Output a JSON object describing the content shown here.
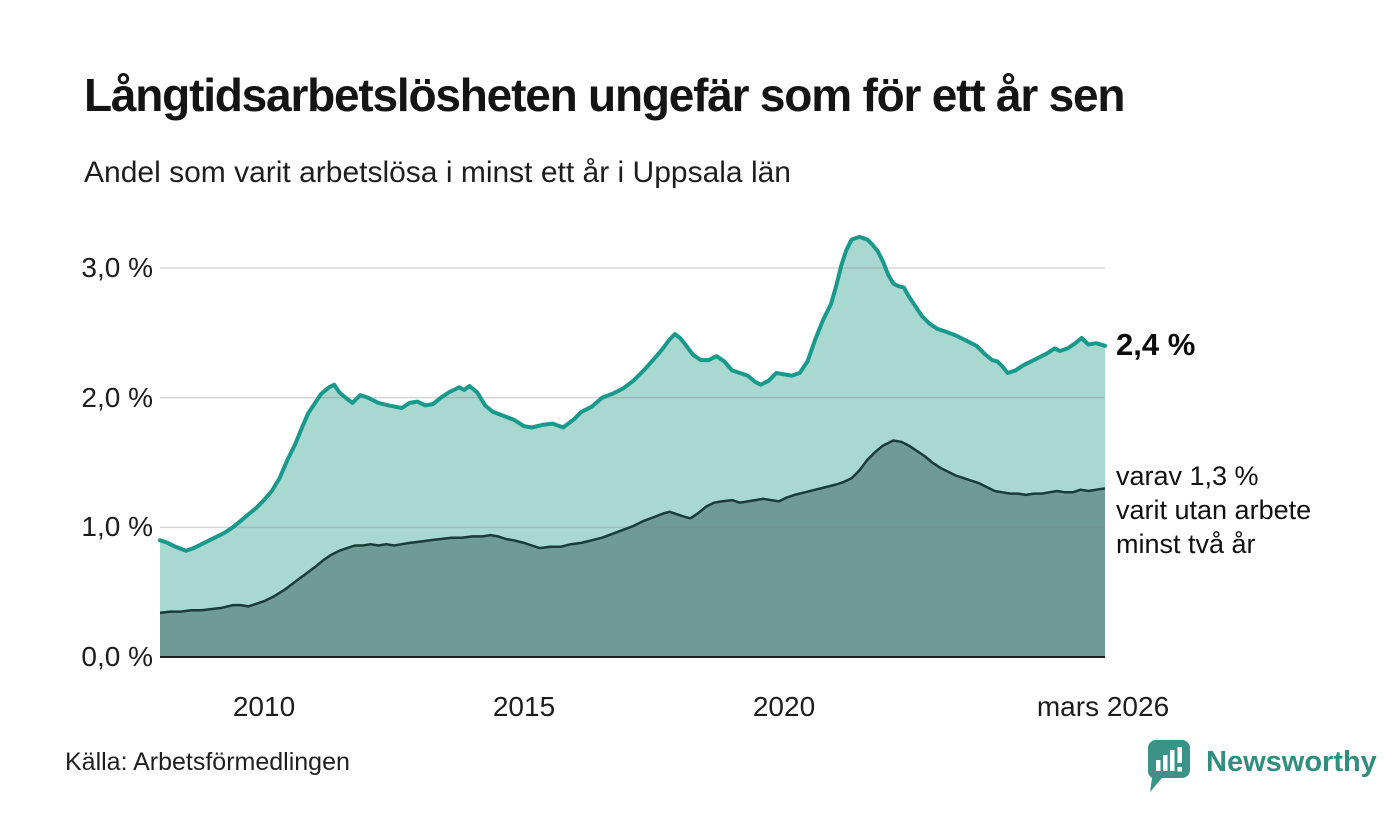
{
  "chart_data": {
    "type": "area",
    "title": "Långtidsarbetslösheten ungefär som för ett år sen",
    "subtitle": "Andel som varit arbetslösa i minst ett år i Uppsala län",
    "source": "Källa: Arbetsförmedlingen",
    "grid": true,
    "legend": "none",
    "x_range": [
      2008.0,
      2026.17
    ],
    "ylim": [
      0,
      3.25
    ],
    "x_ticks": [
      {
        "label": "2010",
        "year": 2010
      },
      {
        "label": "2015",
        "year": 2015
      },
      {
        "label": "2020",
        "year": 2020
      },
      {
        "label": "mars 2026",
        "year": 2026.17
      }
    ],
    "y_ticks": [
      {
        "label": "0,0 %",
        "value": 0
      },
      {
        "label": "1,0 %",
        "value": 1
      },
      {
        "label": "2,0 %",
        "value": 2
      },
      {
        "label": "3,0 %",
        "value": 3
      }
    ],
    "axis_color": "#1f1f1f",
    "gridline_color": "rgba(128,128,128,0.33)",
    "series": [
      {
        "name": "minst ett år",
        "line_color": "#18998b",
        "fill_color": "#a9d8d1",
        "line_width": 4,
        "end_value_label": "2,4 %",
        "points": [
          [
            2008.0,
            0.9
          ],
          [
            2008.15,
            0.88
          ],
          [
            2008.3,
            0.85
          ],
          [
            2008.5,
            0.82
          ],
          [
            2008.65,
            0.84
          ],
          [
            2008.8,
            0.87
          ],
          [
            2008.95,
            0.9
          ],
          [
            2009.1,
            0.93
          ],
          [
            2009.25,
            0.96
          ],
          [
            2009.4,
            1.0
          ],
          [
            2009.55,
            1.05
          ],
          [
            2009.7,
            1.1
          ],
          [
            2009.85,
            1.15
          ],
          [
            2010.0,
            1.21
          ],
          [
            2010.15,
            1.28
          ],
          [
            2010.3,
            1.38
          ],
          [
            2010.45,
            1.52
          ],
          [
            2010.6,
            1.64
          ],
          [
            2010.72,
            1.76
          ],
          [
            2010.85,
            1.88
          ],
          [
            2011.0,
            1.97
          ],
          [
            2011.1,
            2.03
          ],
          [
            2011.25,
            2.08
          ],
          [
            2011.35,
            2.1
          ],
          [
            2011.45,
            2.04
          ],
          [
            2011.6,
            1.99
          ],
          [
            2011.7,
            1.96
          ],
          [
            2011.85,
            2.02
          ],
          [
            2012.0,
            2.0
          ],
          [
            2012.2,
            1.96
          ],
          [
            2012.4,
            1.94
          ],
          [
            2012.65,
            1.92
          ],
          [
            2012.8,
            1.96
          ],
          [
            2012.95,
            1.97
          ],
          [
            2013.1,
            1.94
          ],
          [
            2013.25,
            1.95
          ],
          [
            2013.4,
            2.0
          ],
          [
            2013.55,
            2.04
          ],
          [
            2013.75,
            2.08
          ],
          [
            2013.85,
            2.06
          ],
          [
            2013.95,
            2.09
          ],
          [
            2014.1,
            2.04
          ],
          [
            2014.25,
            1.94
          ],
          [
            2014.4,
            1.89
          ],
          [
            2014.6,
            1.86
          ],
          [
            2014.8,
            1.83
          ],
          [
            2015.0,
            1.78
          ],
          [
            2015.15,
            1.77
          ],
          [
            2015.35,
            1.79
          ],
          [
            2015.55,
            1.8
          ],
          [
            2015.75,
            1.77
          ],
          [
            2015.95,
            1.83
          ],
          [
            2016.1,
            1.89
          ],
          [
            2016.3,
            1.93
          ],
          [
            2016.5,
            2.0
          ],
          [
            2016.7,
            2.03
          ],
          [
            2016.9,
            2.07
          ],
          [
            2017.1,
            2.13
          ],
          [
            2017.3,
            2.21
          ],
          [
            2017.5,
            2.3
          ],
          [
            2017.65,
            2.37
          ],
          [
            2017.8,
            2.45
          ],
          [
            2017.9,
            2.49
          ],
          [
            2018.0,
            2.46
          ],
          [
            2018.1,
            2.41
          ],
          [
            2018.25,
            2.33
          ],
          [
            2018.4,
            2.29
          ],
          [
            2018.55,
            2.29
          ],
          [
            2018.7,
            2.32
          ],
          [
            2018.85,
            2.28
          ],
          [
            2019.0,
            2.21
          ],
          [
            2019.15,
            2.19
          ],
          [
            2019.3,
            2.17
          ],
          [
            2019.45,
            2.12
          ],
          [
            2019.55,
            2.1
          ],
          [
            2019.7,
            2.13
          ],
          [
            2019.85,
            2.19
          ],
          [
            2020.0,
            2.18
          ],
          [
            2020.15,
            2.17
          ],
          [
            2020.3,
            2.19
          ],
          [
            2020.45,
            2.28
          ],
          [
            2020.6,
            2.45
          ],
          [
            2020.75,
            2.6
          ],
          [
            2020.9,
            2.72
          ],
          [
            2021.0,
            2.86
          ],
          [
            2021.1,
            3.02
          ],
          [
            2021.2,
            3.14
          ],
          [
            2021.3,
            3.22
          ],
          [
            2021.45,
            3.24
          ],
          [
            2021.6,
            3.22
          ],
          [
            2021.7,
            3.18
          ],
          [
            2021.8,
            3.13
          ],
          [
            2021.9,
            3.05
          ],
          [
            2022.0,
            2.95
          ],
          [
            2022.1,
            2.88
          ],
          [
            2022.2,
            2.86
          ],
          [
            2022.3,
            2.85
          ],
          [
            2022.4,
            2.78
          ],
          [
            2022.5,
            2.72
          ],
          [
            2022.65,
            2.63
          ],
          [
            2022.8,
            2.57
          ],
          [
            2022.95,
            2.53
          ],
          [
            2023.1,
            2.51
          ],
          [
            2023.3,
            2.48
          ],
          [
            2023.5,
            2.44
          ],
          [
            2023.7,
            2.4
          ],
          [
            2023.85,
            2.34
          ],
          [
            2024.0,
            2.29
          ],
          [
            2024.1,
            2.28
          ],
          [
            2024.2,
            2.24
          ],
          [
            2024.3,
            2.19
          ],
          [
            2024.45,
            2.21
          ],
          [
            2024.6,
            2.25
          ],
          [
            2024.75,
            2.28
          ],
          [
            2024.9,
            2.31
          ],
          [
            2025.05,
            2.34
          ],
          [
            2025.2,
            2.38
          ],
          [
            2025.3,
            2.36
          ],
          [
            2025.45,
            2.38
          ],
          [
            2025.6,
            2.42
          ],
          [
            2025.72,
            2.46
          ],
          [
            2025.85,
            2.41
          ],
          [
            2026.0,
            2.42
          ],
          [
            2026.17,
            2.4
          ]
        ]
      },
      {
        "name": "minst två år",
        "line_color": "#1a3c37",
        "fill_color": "#6f9b94",
        "line_width": 2.5,
        "end_note_lines": [
          "varav 1,3 %",
          "varit utan arbete",
          "minst två år"
        ],
        "points": [
          [
            2008.0,
            0.34
          ],
          [
            2008.2,
            0.35
          ],
          [
            2008.4,
            0.35
          ],
          [
            2008.6,
            0.36
          ],
          [
            2008.8,
            0.36
          ],
          [
            2009.0,
            0.37
          ],
          [
            2009.2,
            0.38
          ],
          [
            2009.4,
            0.4
          ],
          [
            2009.55,
            0.4
          ],
          [
            2009.7,
            0.39
          ],
          [
            2009.85,
            0.41
          ],
          [
            2010.0,
            0.43
          ],
          [
            2010.2,
            0.47
          ],
          [
            2010.4,
            0.52
          ],
          [
            2010.6,
            0.58
          ],
          [
            2010.8,
            0.64
          ],
          [
            2011.0,
            0.7
          ],
          [
            2011.15,
            0.75
          ],
          [
            2011.3,
            0.79
          ],
          [
            2011.45,
            0.82
          ],
          [
            2011.6,
            0.84
          ],
          [
            2011.75,
            0.86
          ],
          [
            2011.9,
            0.86
          ],
          [
            2012.05,
            0.87
          ],
          [
            2012.2,
            0.86
          ],
          [
            2012.35,
            0.87
          ],
          [
            2012.5,
            0.86
          ],
          [
            2012.65,
            0.87
          ],
          [
            2012.8,
            0.88
          ],
          [
            2013.0,
            0.89
          ],
          [
            2013.2,
            0.9
          ],
          [
            2013.4,
            0.91
          ],
          [
            2013.6,
            0.92
          ],
          [
            2013.8,
            0.92
          ],
          [
            2014.0,
            0.93
          ],
          [
            2014.2,
            0.93
          ],
          [
            2014.35,
            0.94
          ],
          [
            2014.5,
            0.93
          ],
          [
            2014.65,
            0.91
          ],
          [
            2014.8,
            0.9
          ],
          [
            2015.0,
            0.88
          ],
          [
            2015.15,
            0.86
          ],
          [
            2015.3,
            0.84
          ],
          [
            2015.5,
            0.85
          ],
          [
            2015.7,
            0.85
          ],
          [
            2015.9,
            0.87
          ],
          [
            2016.1,
            0.88
          ],
          [
            2016.3,
            0.9
          ],
          [
            2016.5,
            0.92
          ],
          [
            2016.7,
            0.95
          ],
          [
            2016.9,
            0.98
          ],
          [
            2017.1,
            1.01
          ],
          [
            2017.3,
            1.05
          ],
          [
            2017.5,
            1.08
          ],
          [
            2017.7,
            1.11
          ],
          [
            2017.8,
            1.12
          ],
          [
            2017.95,
            1.1
          ],
          [
            2018.1,
            1.08
          ],
          [
            2018.2,
            1.07
          ],
          [
            2018.35,
            1.11
          ],
          [
            2018.5,
            1.16
          ],
          [
            2018.65,
            1.19
          ],
          [
            2018.8,
            1.2
          ],
          [
            2019.0,
            1.21
          ],
          [
            2019.15,
            1.19
          ],
          [
            2019.3,
            1.2
          ],
          [
            2019.45,
            1.21
          ],
          [
            2019.6,
            1.22
          ],
          [
            2019.75,
            1.21
          ],
          [
            2019.9,
            1.2
          ],
          [
            2020.05,
            1.23
          ],
          [
            2020.2,
            1.25
          ],
          [
            2020.4,
            1.27
          ],
          [
            2020.6,
            1.29
          ],
          [
            2020.8,
            1.31
          ],
          [
            2021.0,
            1.33
          ],
          [
            2021.15,
            1.35
          ],
          [
            2021.3,
            1.38
          ],
          [
            2021.45,
            1.44
          ],
          [
            2021.6,
            1.52
          ],
          [
            2021.75,
            1.58
          ],
          [
            2021.9,
            1.63
          ],
          [
            2022.0,
            1.65
          ],
          [
            2022.1,
            1.67
          ],
          [
            2022.25,
            1.66
          ],
          [
            2022.4,
            1.63
          ],
          [
            2022.55,
            1.59
          ],
          [
            2022.7,
            1.55
          ],
          [
            2022.85,
            1.5
          ],
          [
            2023.0,
            1.46
          ],
          [
            2023.15,
            1.43
          ],
          [
            2023.3,
            1.4
          ],
          [
            2023.45,
            1.38
          ],
          [
            2023.6,
            1.36
          ],
          [
            2023.75,
            1.34
          ],
          [
            2023.9,
            1.31
          ],
          [
            2024.05,
            1.28
          ],
          [
            2024.2,
            1.27
          ],
          [
            2024.35,
            1.26
          ],
          [
            2024.5,
            1.26
          ],
          [
            2024.65,
            1.25
          ],
          [
            2024.8,
            1.26
          ],
          [
            2024.95,
            1.26
          ],
          [
            2025.1,
            1.27
          ],
          [
            2025.25,
            1.28
          ],
          [
            2025.4,
            1.27
          ],
          [
            2025.55,
            1.27
          ],
          [
            2025.7,
            1.29
          ],
          [
            2025.85,
            1.28
          ],
          [
            2026.0,
            1.29
          ],
          [
            2026.17,
            1.3
          ]
        ]
      }
    ],
    "annotations": {
      "end_value": "2,4 %",
      "end_note_lines": [
        "varav 1,3 %",
        "varit utan arbete",
        "minst två år"
      ]
    }
  },
  "branding": {
    "logo_text": "Newsworthy",
    "logo_color": "#2f8e7e",
    "icon_color": "#3a9386"
  }
}
